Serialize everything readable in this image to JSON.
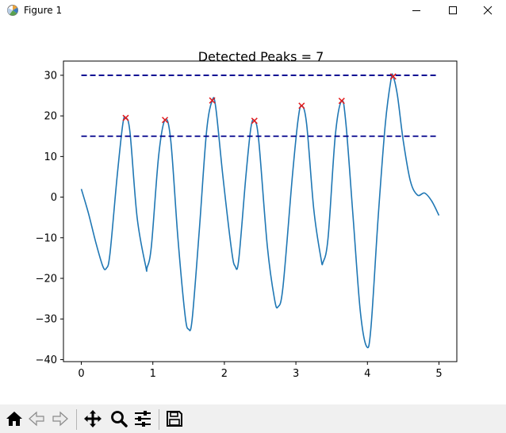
{
  "window": {
    "title": "Figure 1",
    "icon": "matplotlib-logo-icon",
    "controls": [
      "minimize-icon",
      "maximize-icon",
      "close-icon"
    ]
  },
  "toolbar": {
    "buttons": [
      "home-icon",
      "back-icon",
      "forward-icon",
      "pan-icon",
      "zoom-icon",
      "configure-subplots-icon",
      "save-icon"
    ]
  },
  "colors": {
    "line": "#1f77b4",
    "threshold": "#00008b",
    "peak_marker": "#e31a1c"
  },
  "chart_data": {
    "type": "line",
    "title": "Detected Peaks = 7",
    "xlabel": "",
    "ylabel": "",
    "xlim": [
      -0.25,
      5.25
    ],
    "ylim": [
      -40.5,
      33.5
    ],
    "xticks": [
      0,
      1,
      2,
      3,
      4,
      5
    ],
    "yticks": [
      -40,
      -30,
      -20,
      -10,
      0,
      10,
      20,
      30
    ],
    "grid": false,
    "series": [
      {
        "style": "solid",
        "points": [
          [
            0.0,
            2.0
          ],
          [
            0.1,
            -4.0
          ],
          [
            0.2,
            -11.0
          ],
          [
            0.3,
            -17.0
          ],
          [
            0.35,
            -17.5
          ],
          [
            0.4,
            -14.0
          ],
          [
            0.5,
            5.0
          ],
          [
            0.58,
            18.0
          ],
          [
            0.62,
            19.5
          ],
          [
            0.68,
            16.0
          ],
          [
            0.78,
            -5.0
          ],
          [
            0.9,
            -17.0
          ],
          [
            0.92,
            -17.3
          ],
          [
            0.98,
            -12.0
          ],
          [
            1.08,
            10.0
          ],
          [
            1.17,
            19.0
          ],
          [
            1.25,
            14.0
          ],
          [
            1.35,
            -10.0
          ],
          [
            1.45,
            -29.0
          ],
          [
            1.5,
            -32.5
          ],
          [
            1.55,
            -30.0
          ],
          [
            1.65,
            -8.0
          ],
          [
            1.75,
            16.0
          ],
          [
            1.83,
            23.8
          ],
          [
            1.88,
            22.0
          ],
          [
            1.98,
            5.0
          ],
          [
            2.1,
            -13.0
          ],
          [
            2.15,
            -17.0
          ],
          [
            2.2,
            -15.5
          ],
          [
            2.3,
            5.0
          ],
          [
            2.37,
            17.0
          ],
          [
            2.42,
            18.8
          ],
          [
            2.48,
            14.0
          ],
          [
            2.6,
            -12.0
          ],
          [
            2.7,
            -25.0
          ],
          [
            2.75,
            -27.0
          ],
          [
            2.82,
            -22.0
          ],
          [
            2.95,
            5.0
          ],
          [
            3.03,
            19.0
          ],
          [
            3.08,
            22.5
          ],
          [
            3.15,
            18.0
          ],
          [
            3.25,
            -3.0
          ],
          [
            3.35,
            -15.0
          ],
          [
            3.38,
            -16.0
          ],
          [
            3.45,
            -10.0
          ],
          [
            3.55,
            15.0
          ],
          [
            3.64,
            23.7
          ],
          [
            3.7,
            18.0
          ],
          [
            3.8,
            -5.0
          ],
          [
            3.9,
            -28.0
          ],
          [
            3.99,
            -36.8
          ],
          [
            4.05,
            -32.0
          ],
          [
            4.15,
            -5.0
          ],
          [
            4.25,
            18.0
          ],
          [
            4.33,
            29.0
          ],
          [
            4.36,
            29.7
          ],
          [
            4.42,
            25.0
          ],
          [
            4.5,
            14.0
          ],
          [
            4.6,
            4.0
          ],
          [
            4.7,
            0.5
          ],
          [
            4.8,
            1.0
          ],
          [
            4.9,
            -1.0
          ],
          [
            5.0,
            -4.5
          ]
        ]
      },
      {
        "style": "dashed",
        "points": [
          [
            0.0,
            30.0
          ],
          [
            5.0,
            30.0
          ]
        ]
      },
      {
        "style": "dashed",
        "points": [
          [
            0.0,
            15.0
          ],
          [
            5.0,
            15.0
          ]
        ]
      }
    ],
    "peaks": [
      [
        0.62,
        19.5
      ],
      [
        1.17,
        19.0
      ],
      [
        1.83,
        23.8
      ],
      [
        2.42,
        18.8
      ],
      [
        3.08,
        22.5
      ],
      [
        3.64,
        23.7
      ],
      [
        4.36,
        29.7
      ]
    ]
  }
}
